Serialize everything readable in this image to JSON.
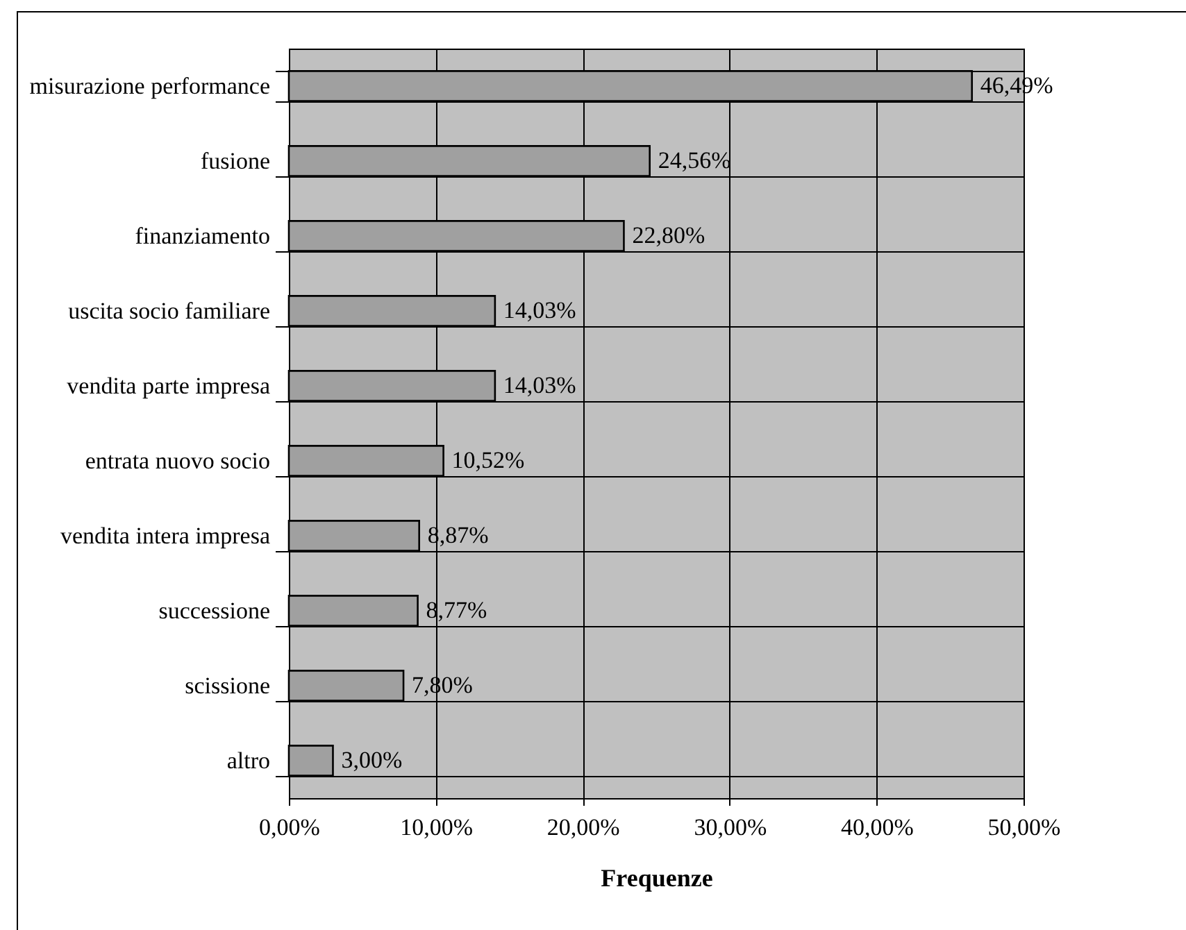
{
  "chart_data": {
    "type": "bar",
    "orientation": "horizontal",
    "xlabel": "Frequenze",
    "categories": [
      "misurazione performance",
      "fusione",
      "finanziamento",
      "uscita socio familiare",
      "vendita parte impresa",
      "entrata nuovo socio",
      "vendita intera impresa",
      "successione",
      "scissione",
      "altro"
    ],
    "values": [
      46.49,
      24.56,
      22.8,
      14.03,
      14.03,
      10.52,
      8.87,
      8.77,
      7.8,
      3.0
    ],
    "value_labels": [
      "46,49%",
      "24,56%",
      "22,80%",
      "14,03%",
      "14,03%",
      "10,52%",
      "8,87%",
      "8,77%",
      "7,80%",
      "3,00%"
    ],
    "color": "#a0a0a0",
    "xlim": [
      0,
      50
    ],
    "xticks": [
      {
        "value": 0,
        "label": "0,00%"
      },
      {
        "value": 10,
        "label": "10,00%"
      },
      {
        "value": 20,
        "label": "20,00%"
      },
      {
        "value": 30,
        "label": "30,00%"
      },
      {
        "value": 40,
        "label": "40,00%"
      },
      {
        "value": 50,
        "label": "50,00%"
      }
    ],
    "grid": true
  }
}
